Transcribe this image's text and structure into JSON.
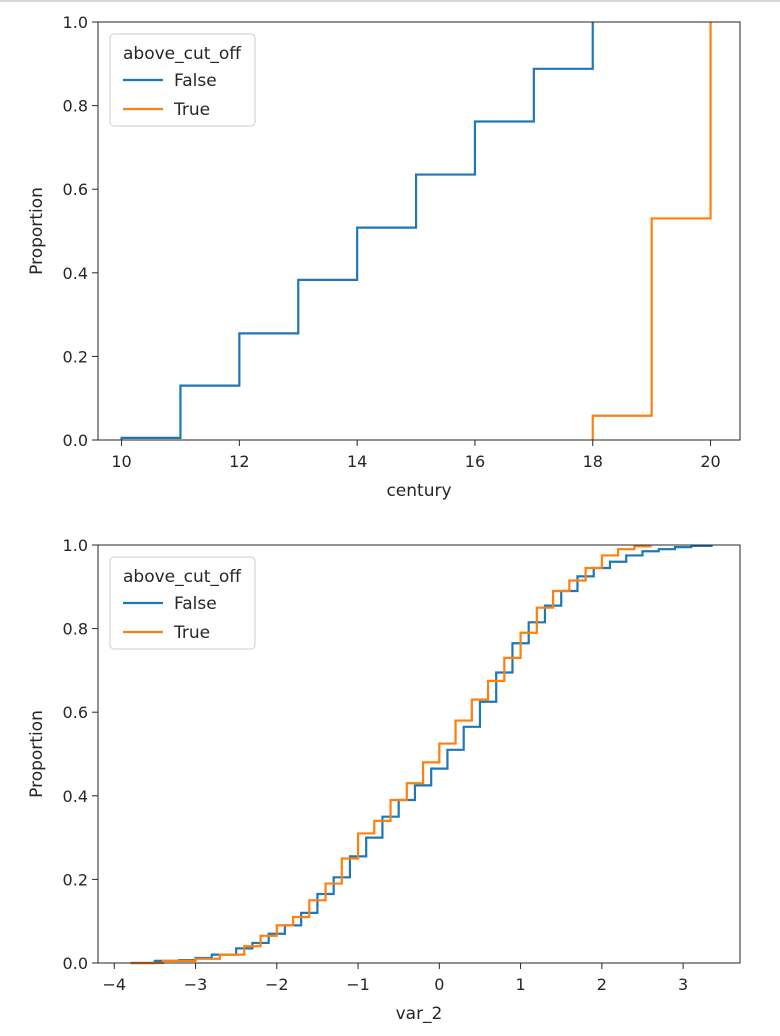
{
  "chart_data": [
    {
      "type": "line",
      "subtype": "ecdf",
      "xlabel": "century",
      "ylabel": "Proportion",
      "xlim": [
        9.6,
        20.5
      ],
      "ylim": [
        0,
        1
      ],
      "xticks": [
        10,
        12,
        14,
        16,
        18,
        20
      ],
      "yticks": [
        0.0,
        0.2,
        0.4,
        0.6,
        0.8,
        1.0
      ],
      "legend": {
        "title": "above_cut_off",
        "position": "top-left"
      },
      "series": [
        {
          "name": "False",
          "color": "#1f77b4",
          "steps": [
            [
              10,
              0.005
            ],
            [
              11,
              0.13
            ],
            [
              12,
              0.255
            ],
            [
              13,
              0.383
            ],
            [
              14,
              0.508
            ],
            [
              15,
              0.635
            ],
            [
              16,
              0.762
            ],
            [
              17,
              0.888
            ],
            [
              18,
              1.0
            ]
          ]
        },
        {
          "name": "True",
          "color": "#ff7f0e",
          "steps": [
            [
              18,
              0.058
            ],
            [
              19,
              0.53
            ],
            [
              20,
              1.0
            ]
          ]
        }
      ]
    },
    {
      "type": "line",
      "subtype": "ecdf",
      "xlabel": "var_2",
      "ylabel": "Proportion",
      "xlim": [
        -4.2,
        3.7
      ],
      "ylim": [
        0,
        1
      ],
      "xticks": [
        -4,
        -3,
        -2,
        -1,
        0,
        1,
        2,
        3
      ],
      "yticks": [
        0.0,
        0.2,
        0.4,
        0.6,
        0.8,
        1.0
      ],
      "legend": {
        "title": "above_cut_off",
        "position": "top-left"
      },
      "series": [
        {
          "name": "False",
          "color": "#1f77b4",
          "x": [
            -3.8,
            -3.5,
            -3.2,
            -3.0,
            -2.8,
            -2.5,
            -2.3,
            -2.1,
            -1.9,
            -1.7,
            -1.5,
            -1.3,
            -1.1,
            -0.9,
            -0.7,
            -0.5,
            -0.3,
            -0.1,
            0.1,
            0.3,
            0.5,
            0.7,
            0.9,
            1.1,
            1.3,
            1.5,
            1.7,
            1.9,
            2.1,
            2.3,
            2.5,
            2.7,
            2.9,
            3.1,
            3.35
          ],
          "y": [
            0.0,
            0.005,
            0.007,
            0.012,
            0.02,
            0.035,
            0.048,
            0.07,
            0.09,
            0.12,
            0.165,
            0.205,
            0.255,
            0.3,
            0.35,
            0.39,
            0.425,
            0.465,
            0.51,
            0.565,
            0.625,
            0.695,
            0.765,
            0.815,
            0.855,
            0.89,
            0.925,
            0.945,
            0.96,
            0.975,
            0.985,
            0.99,
            0.995,
            0.998,
            1.0
          ]
        },
        {
          "name": "True",
          "color": "#ff7f0e",
          "x": [
            -3.8,
            -3.4,
            -3.0,
            -2.7,
            -2.4,
            -2.2,
            -2.0,
            -1.8,
            -1.6,
            -1.4,
            -1.2,
            -1.0,
            -0.8,
            -0.6,
            -0.4,
            -0.2,
            0.0,
            0.2,
            0.4,
            0.6,
            0.8,
            1.0,
            1.2,
            1.4,
            1.6,
            1.8,
            2.0,
            2.2,
            2.4,
            2.6
          ],
          "y": [
            0.0,
            0.005,
            0.01,
            0.02,
            0.04,
            0.065,
            0.09,
            0.11,
            0.15,
            0.19,
            0.25,
            0.31,
            0.34,
            0.39,
            0.43,
            0.48,
            0.525,
            0.58,
            0.63,
            0.675,
            0.73,
            0.79,
            0.85,
            0.89,
            0.915,
            0.945,
            0.975,
            0.99,
            0.997,
            1.0
          ]
        }
      ]
    }
  ]
}
